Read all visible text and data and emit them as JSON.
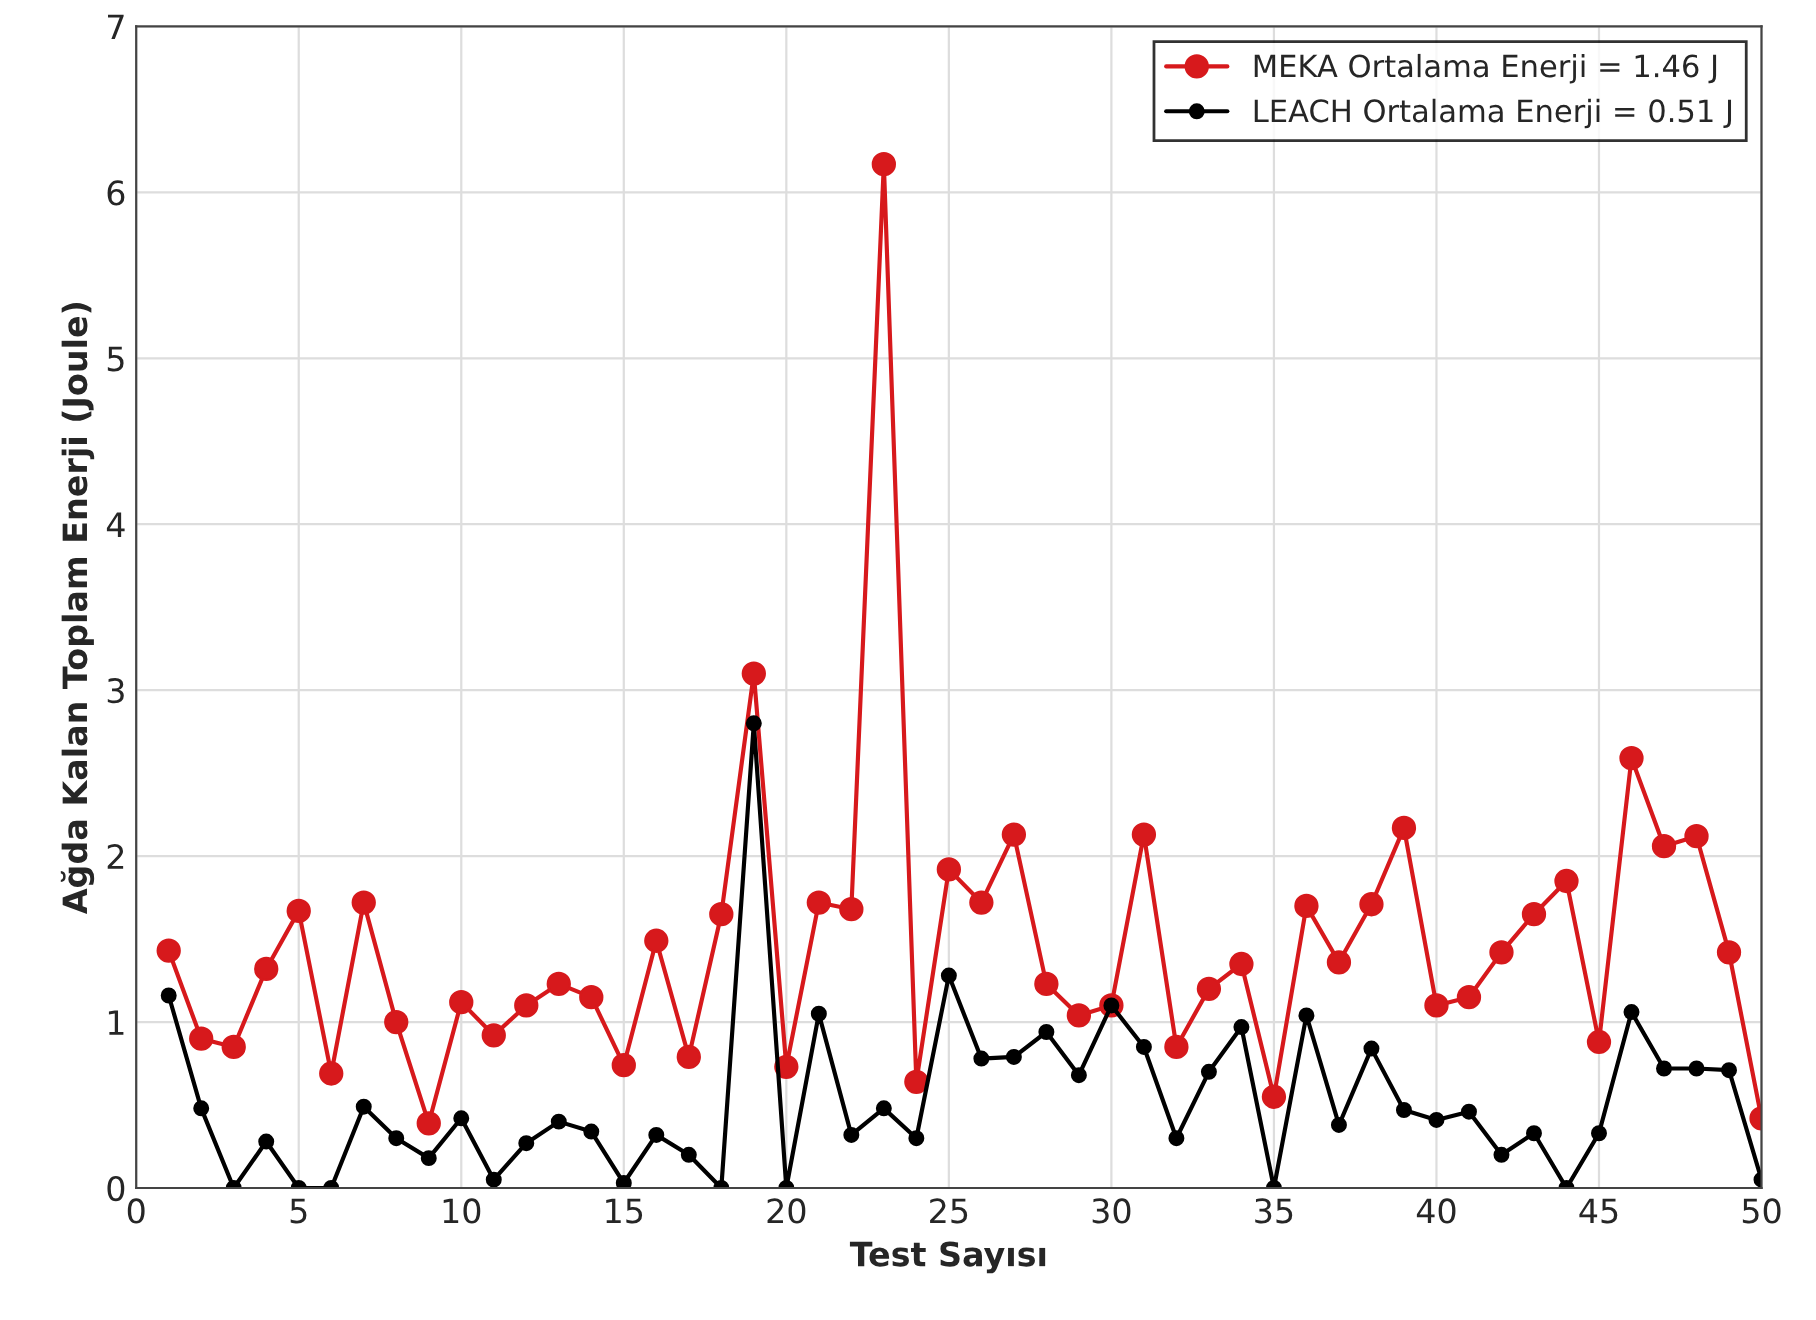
{
  "chart_data": {
    "type": "line",
    "xlabel": "Test Sayısı",
    "ylabel": "Ağda Kalan Toplam Enerji (Joule)",
    "x": [
      1,
      2,
      3,
      4,
      5,
      6,
      7,
      8,
      9,
      10,
      11,
      12,
      13,
      14,
      15,
      16,
      17,
      18,
      19,
      20,
      21,
      22,
      23,
      24,
      25,
      26,
      27,
      28,
      29,
      30,
      31,
      32,
      33,
      34,
      35,
      36,
      37,
      38,
      39,
      40,
      41,
      42,
      43,
      44,
      45,
      46,
      47,
      48,
      49,
      50
    ],
    "series": [
      {
        "name": "MEKA Ortalama Enerji = 1.46 J",
        "color": "#d7191c",
        "values": [
          1.43,
          0.9,
          0.85,
          1.32,
          1.67,
          0.69,
          1.72,
          1.0,
          0.39,
          1.12,
          0.92,
          1.1,
          1.23,
          1.15,
          0.74,
          1.49,
          0.79,
          1.65,
          3.1,
          0.73,
          1.72,
          1.68,
          6.17,
          0.64,
          1.92,
          1.72,
          2.13,
          1.23,
          1.04,
          1.1,
          2.13,
          0.85,
          1.2,
          1.35,
          0.55,
          1.7,
          1.36,
          1.71,
          2.17,
          1.1,
          1.15,
          1.42,
          1.65,
          1.85,
          0.88,
          2.59,
          2.06,
          2.12,
          1.42,
          0.42
        ]
      },
      {
        "name": "LEACH Ortalama Enerji = 0.51 J",
        "color": "#000000",
        "values": [
          1.16,
          0.48,
          0.0,
          0.28,
          0.0,
          0.0,
          0.49,
          0.3,
          0.18,
          0.42,
          0.05,
          0.27,
          0.4,
          0.34,
          0.03,
          0.32,
          0.2,
          0.0,
          2.8,
          0.0,
          1.05,
          0.32,
          0.48,
          0.3,
          1.28,
          0.78,
          0.79,
          0.94,
          0.68,
          1.1,
          0.85,
          0.3,
          0.7,
          0.97,
          0.0,
          1.04,
          0.38,
          0.84,
          0.47,
          0.41,
          0.46,
          0.2,
          0.33,
          0.0,
          0.33,
          1.06,
          0.72,
          0.72,
          0.71,
          0.05
        ]
      }
    ],
    "xlim": [
      0,
      50
    ],
    "xticks": [
      0,
      5,
      10,
      15,
      20,
      25,
      30,
      35,
      40,
      45,
      50
    ],
    "ylim": [
      0,
      7
    ],
    "yticks": [
      0,
      1,
      2,
      3,
      4,
      5,
      6,
      7
    ],
    "grid": true,
    "legend": "top right",
    "marker": "circle",
    "line_style": "solid"
  }
}
